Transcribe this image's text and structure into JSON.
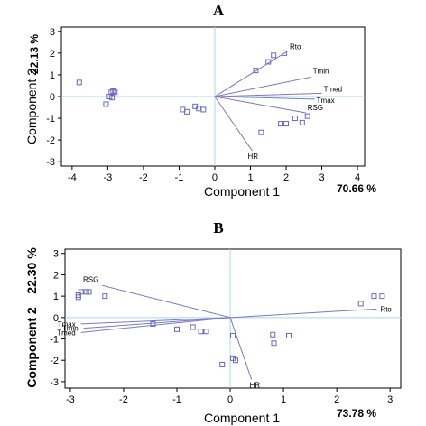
{
  "chart_data": [
    {
      "type": "scatter",
      "title": "A",
      "xlabel": "Component 1",
      "ylabel": "Component 2",
      "x_variance": "70.66 %",
      "y_variance": "22.13 %",
      "xlim": [
        -4.3,
        4.2
      ],
      "ylim": [
        -3.2,
        3.2
      ],
      "xticks": [
        -4,
        -3,
        -2,
        -1,
        0,
        1,
        2,
        3,
        4
      ],
      "yticks": [
        -3,
        -2,
        -1,
        0,
        1,
        2,
        3
      ],
      "colors": {
        "axis_lines": "#a8d8ec",
        "vectors": "#7a7ac0",
        "points": "#6868b8"
      },
      "points": [
        [
          -3.8,
          0.65
        ],
        [
          -2.9,
          0.2
        ],
        [
          -2.85,
          0.25
        ],
        [
          -2.8,
          0.2
        ],
        [
          -2.95,
          0.0
        ],
        [
          -3.05,
          -0.35
        ],
        [
          -2.88,
          -0.05
        ],
        [
          -0.9,
          -0.6
        ],
        [
          -0.78,
          -0.7
        ],
        [
          -0.55,
          -0.45
        ],
        [
          -0.45,
          -0.55
        ],
        [
          -0.32,
          -0.6
        ],
        [
          1.15,
          1.2
        ],
        [
          1.5,
          1.6
        ],
        [
          1.65,
          1.9
        ],
        [
          1.95,
          2.0
        ],
        [
          1.3,
          -1.65
        ],
        [
          1.85,
          -1.25
        ],
        [
          2.0,
          -1.25
        ],
        [
          2.25,
          -1.0
        ],
        [
          2.45,
          -1.2
        ],
        [
          2.6,
          -0.9
        ]
      ],
      "vectors": [
        {
          "label": "Rto",
          "x": 2.05,
          "y": 2.1
        },
        {
          "label": "Tmin",
          "x": 2.7,
          "y": 0.9
        },
        {
          "label": "Tmed",
          "x": 3.0,
          "y": 0.15
        },
        {
          "label": "Tmax",
          "x": 2.8,
          "y": -0.12
        },
        {
          "label": "RSG",
          "x": 2.55,
          "y": -0.75
        },
        {
          "label": "HR",
          "x": 1.05,
          "y": -2.5
        }
      ]
    },
    {
      "type": "scatter",
      "title": "B",
      "xlabel": "Component 1",
      "ylabel": "Component 2",
      "x_variance": "73.78 %",
      "y_variance": "22.30 %",
      "xlim": [
        -3.1,
        3.2
      ],
      "ylim": [
        -3.3,
        3.2
      ],
      "xticks": [
        -3,
        -2,
        -1,
        0,
        1,
        2,
        3
      ],
      "yticks": [
        -3,
        -2,
        -1,
        0,
        1,
        2,
        3
      ],
      "colors": {
        "axis_lines": "#a8d8ec",
        "vectors": "#7a7ac0",
        "points": "#6868b8"
      },
      "points": [
        [
          -2.85,
          1.05
        ],
        [
          -2.85,
          0.95
        ],
        [
          -2.8,
          1.2
        ],
        [
          -2.7,
          1.2
        ],
        [
          -2.65,
          1.2
        ],
        [
          -2.35,
          1.0
        ],
        [
          -1.45,
          -0.3
        ],
        [
          -1.0,
          -0.55
        ],
        [
          -0.7,
          -0.45
        ],
        [
          -0.55,
          -0.65
        ],
        [
          -0.45,
          -0.65
        ],
        [
          -0.15,
          -2.2
        ],
        [
          0.05,
          -0.85
        ],
        [
          0.05,
          -1.9
        ],
        [
          0.1,
          -2.0
        ],
        [
          0.8,
          -0.8
        ],
        [
          0.82,
          -1.2
        ],
        [
          1.1,
          -0.85
        ],
        [
          2.45,
          0.65
        ],
        [
          2.7,
          1.0
        ],
        [
          2.85,
          1.0
        ]
      ],
      "vectors": [
        {
          "label": "RSG",
          "x": -2.4,
          "y": 1.5
        },
        {
          "label": "Tmax",
          "x": -2.8,
          "y": -0.3
        },
        {
          "label": "Tmin",
          "x": -2.75,
          "y": -0.5
        },
        {
          "label": "Tmed",
          "x": -2.8,
          "y": -0.7
        },
        {
          "label": "HR",
          "x": 0.4,
          "y": -2.9
        },
        {
          "label": "Rto",
          "x": 2.75,
          "y": 0.4
        }
      ]
    }
  ]
}
